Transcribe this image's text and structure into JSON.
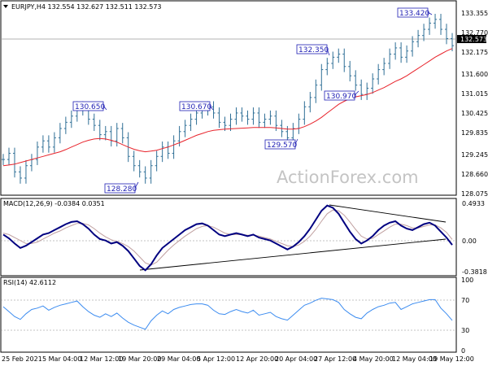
{
  "header": {
    "main": "EURJPY,H4  132.554 132.627 132.511 132.573",
    "macd": "MACD(12,26,9) -0.0384 0.0351",
    "rsi": "RSI(14) 42.6112"
  },
  "watermark": "ActionForex.com",
  "colors": {
    "price": "#2f6f96",
    "ma": "#e8232b",
    "macd": "#000080",
    "signal": "#c0a0a0",
    "rsi": "#3c8cf0",
    "annotation": "#1f1fb4",
    "trendline": "#000000",
    "grid": "#000000",
    "last_price_bg": "#000000",
    "last_price_fg": "#ffffff"
  },
  "chart_data": [
    {
      "type": "candlestick",
      "panel": "price",
      "symbol": "EURJPY",
      "timeframe": "H4",
      "ohlc_last": {
        "open": 132.554,
        "high": 132.627,
        "low": 132.511,
        "close": 132.573
      },
      "ylim": [
        127.8,
        133.6
      ],
      "yticks": [
        "133.355",
        "132.770",
        "132.175",
        "131.600",
        "131.015",
        "130.425",
        "129.835",
        "129.245",
        "128.660",
        "128.075"
      ],
      "current_price": "132.573",
      "series_close": [
        128.9,
        129.1,
        128.5,
        128.3,
        128.7,
        128.9,
        129.3,
        129.5,
        129.3,
        129.6,
        129.9,
        130.1,
        130.3,
        130.6,
        130.5,
        130.2,
        130.0,
        129.7,
        129.8,
        129.5,
        129.9,
        129.6,
        129.0,
        128.7,
        128.5,
        128.3,
        128.7,
        129.0,
        129.3,
        129.1,
        129.5,
        129.8,
        130.0,
        130.2,
        130.4,
        130.5,
        130.6,
        130.4,
        130.1,
        130.0,
        130.2,
        130.4,
        130.3,
        130.2,
        130.4,
        130.1,
        130.2,
        130.3,
        130.0,
        129.8,
        129.6,
        129.9,
        130.2,
        130.6,
        130.9,
        131.3,
        131.8,
        132.0,
        132.2,
        132.3,
        131.9,
        131.6,
        131.3,
        131.0,
        131.2,
        131.5,
        131.8,
        132.0,
        132.3,
        132.5,
        132.2,
        132.4,
        132.7,
        132.9,
        133.1,
        133.3,
        133.42,
        133.1,
        132.8,
        132.573
      ],
      "series_ma": [
        128.7,
        128.72,
        128.75,
        128.8,
        128.85,
        128.9,
        128.95,
        129.0,
        129.05,
        129.1,
        129.15,
        129.22,
        129.3,
        129.38,
        129.46,
        129.52,
        129.56,
        129.58,
        129.56,
        129.52,
        129.46,
        129.38,
        129.3,
        129.23,
        129.18,
        129.15,
        129.17,
        129.2,
        129.25,
        129.3,
        129.37,
        129.44,
        129.52,
        129.6,
        129.68,
        129.74,
        129.8,
        129.84,
        129.86,
        129.88,
        129.89,
        129.9,
        129.91,
        129.92,
        129.93,
        129.93,
        129.93,
        129.93,
        129.92,
        129.9,
        129.88,
        129.88,
        129.9,
        129.96,
        130.04,
        130.14,
        130.26,
        130.4,
        130.54,
        130.68,
        130.78,
        130.86,
        130.92,
        130.96,
        131.0,
        131.06,
        131.14,
        131.22,
        131.32,
        131.42,
        131.5,
        131.6,
        131.72,
        131.84,
        131.96,
        132.08,
        132.2,
        132.3,
        132.4,
        132.48
      ],
      "annotations": [
        "133.420",
        "132.350",
        "130.970",
        "130.670",
        "130.650",
        "129.570",
        "128.280"
      ]
    },
    {
      "type": "line",
      "panel": "macd",
      "title": "MACD(12,26,9)",
      "macd_value": -0.0384,
      "signal_value": 0.0351,
      "ylim": [
        -0.42,
        0.52
      ],
      "yticks": [
        "0.4933",
        "0.00",
        "-0.3818"
      ],
      "series": [
        {
          "name": "MACD",
          "values": [
            0.1,
            0.05,
            -0.02,
            -0.08,
            -0.05,
            0.0,
            0.05,
            0.1,
            0.12,
            0.16,
            0.2,
            0.24,
            0.27,
            0.28,
            0.24,
            0.18,
            0.1,
            0.04,
            0.02,
            -0.02,
            0.0,
            -0.05,
            -0.12,
            -0.22,
            -0.32,
            -0.38,
            -0.3,
            -0.18,
            -0.08,
            -0.02,
            0.04,
            0.1,
            0.16,
            0.2,
            0.24,
            0.25,
            0.22,
            0.16,
            0.1,
            0.08,
            0.1,
            0.12,
            0.1,
            0.08,
            0.1,
            0.06,
            0.04,
            0.02,
            -0.02,
            -0.06,
            -0.1,
            -0.06,
            0.0,
            0.08,
            0.18,
            0.3,
            0.42,
            0.49,
            0.46,
            0.38,
            0.26,
            0.14,
            0.04,
            -0.02,
            0.02,
            0.08,
            0.16,
            0.22,
            0.26,
            0.28,
            0.22,
            0.18,
            0.16,
            0.2,
            0.24,
            0.26,
            0.22,
            0.14,
            0.06,
            -0.0384
          ]
        },
        {
          "name": "Signal",
          "values": [
            0.12,
            0.1,
            0.06,
            0.02,
            -0.02,
            -0.02,
            0.0,
            0.04,
            0.08,
            0.12,
            0.15,
            0.19,
            0.22,
            0.25,
            0.25,
            0.23,
            0.18,
            0.12,
            0.07,
            0.03,
            0.01,
            -0.02,
            -0.06,
            -0.12,
            -0.2,
            -0.28,
            -0.31,
            -0.27,
            -0.19,
            -0.11,
            -0.04,
            0.02,
            0.08,
            0.13,
            0.18,
            0.21,
            0.22,
            0.2,
            0.16,
            0.12,
            0.1,
            0.1,
            0.1,
            0.09,
            0.09,
            0.08,
            0.06,
            0.04,
            0.01,
            -0.02,
            -0.05,
            -0.06,
            -0.04,
            0.01,
            0.08,
            0.17,
            0.28,
            0.38,
            0.43,
            0.42,
            0.36,
            0.27,
            0.17,
            0.08,
            0.04,
            0.05,
            0.1,
            0.15,
            0.2,
            0.24,
            0.24,
            0.22,
            0.19,
            0.19,
            0.21,
            0.23,
            0.23,
            0.19,
            0.13,
            0.0351
          ]
        }
      ]
    },
    {
      "type": "line",
      "panel": "rsi",
      "title": "RSI(14)",
      "last_value": 42.6112,
      "ylim": [
        0,
        100
      ],
      "levels": [
        30,
        70
      ],
      "yticks": [
        "100",
        "70",
        "30",
        "0"
      ],
      "values": [
        62,
        55,
        48,
        44,
        52,
        58,
        60,
        63,
        57,
        61,
        64,
        66,
        68,
        70,
        62,
        55,
        50,
        47,
        52,
        48,
        53,
        46,
        40,
        36,
        33,
        30,
        42,
        50,
        56,
        52,
        58,
        61,
        63,
        65,
        66,
        66,
        64,
        57,
        52,
        51,
        55,
        58,
        55,
        53,
        57,
        50,
        52,
        54,
        48,
        45,
        43,
        50,
        57,
        64,
        67,
        71,
        74,
        73,
        72,
        68,
        58,
        52,
        47,
        45,
        53,
        58,
        62,
        64,
        67,
        68,
        58,
        62,
        66,
        68,
        70,
        72,
        72,
        60,
        52,
        42.6112
      ]
    }
  ],
  "xaxis": {
    "labels": [
      "25 Feb 2021",
      "5 Mar 04:00",
      "12 Mar 12:00",
      "19 Mar 20:00",
      "29 Mar 04:00",
      "5 Apr 12:00",
      "12 Apr 20:00",
      "20 Apr 04:00",
      "27 Apr 12:00",
      "4 May 20:00",
      "12 May 04:00",
      "19 May 12:00"
    ]
  }
}
